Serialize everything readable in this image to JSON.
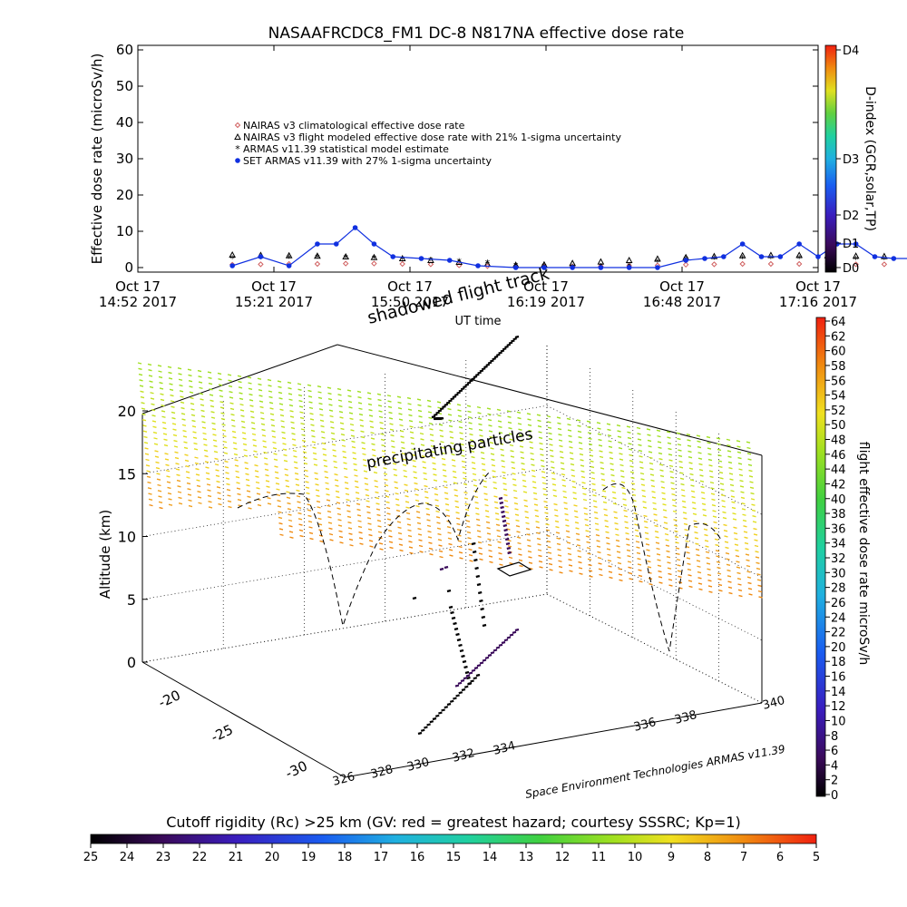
{
  "chart_data": [
    {
      "type": "line",
      "title": "NASAAFRCDC8_FM1 DC-8   N817NA effective dose rate",
      "ylabel": "Effective dose rate (microSv/h)",
      "xlabel": "",
      "ylim": [
        0,
        60
      ],
      "y_ticks": [
        "0",
        "10",
        "20",
        "30",
        "40",
        "50",
        "60"
      ],
      "x_ticks": [
        {
          "line1": "Oct 17",
          "line2": "14:52 2017"
        },
        {
          "line1": "Oct 17",
          "line2": "15:21 2017"
        },
        {
          "line1": "Oct 17",
          "line2": "15:50 2017"
        },
        {
          "line1": "Oct 17",
          "line2": "16:19 2017"
        },
        {
          "line1": "Oct 17",
          "line2": "16:48 2017"
        },
        {
          "line1": "Oct 17",
          "line2": "17:16 2017"
        }
      ],
      "x_axis_caption": "UT time",
      "legend_placement": "upper-left",
      "legend": [
        "NAIRAS v3 climatological effective dose rate",
        "NAIRAS v3 flight modeled effective dose rate with 21% 1-sigma uncertainty",
        "ARMAS v11.39 statistical model estimate",
        "SET ARMAS v11.39 with 27% 1-sigma uncertainty"
      ],
      "colors": [
        "#d06060",
        "#000000",
        "#55dd55",
        "#1030e0"
      ],
      "series": [
        {
          "name": "NAIRAS v3 climatological effective dose rate",
          "x_minutes": [
            20,
            26,
            32,
            38,
            44,
            50,
            56,
            62,
            68,
            74,
            80,
            86,
            92,
            98,
            104,
            110,
            116,
            122,
            128,
            134,
            140,
            146,
            152,
            158,
            164,
            170
          ],
          "values": [
            0.8,
            0.9,
            1.0,
            1.0,
            1.1,
            1.1,
            1.0,
            0.9,
            0.6,
            0.4,
            0.3,
            0.3,
            0.3,
            0.4,
            0.5,
            0.6,
            0.8,
            0.9,
            1.0,
            1.0,
            1.0,
            1.0,
            0.9,
            0.9,
            0.8,
            0.8
          ]
        },
        {
          "name": "NAIRAS v3 flight modeled effective dose rate with 21% 1-sigma uncertainty",
          "x_minutes": [
            20,
            26,
            32,
            38,
            44,
            50,
            56,
            62,
            68,
            74,
            80,
            86,
            92,
            98,
            104,
            110,
            116,
            122,
            128,
            134,
            140,
            146,
            152,
            158,
            164,
            170
          ],
          "values": [
            3.5,
            3.4,
            3.3,
            3.2,
            3.0,
            2.8,
            2.5,
            2.0,
            1.5,
            1.0,
            0.7,
            0.8,
            1.2,
            1.6,
            2.0,
            2.4,
            2.8,
            3.1,
            3.3,
            3.4,
            3.4,
            3.3,
            3.2,
            3.1,
            3.0,
            3.0
          ]
        },
        {
          "name": "ARMAS v11.39 statistical model estimate",
          "x_minutes": [
            20,
            26,
            32,
            38,
            44,
            50,
            56,
            62,
            68,
            74,
            80,
            86,
            92,
            98,
            104,
            110,
            116,
            122,
            128,
            134,
            140,
            146,
            152,
            158,
            164,
            170
          ],
          "values": [
            2.5,
            2.5,
            2.6,
            2.7,
            2.6,
            2.5,
            2.3,
            2.0,
            1.6,
            1.3,
            0.5,
            0.2,
            0.1,
            0.2,
            0.4,
            1.5,
            2.2,
            2.4,
            2.5,
            2.5,
            2.5,
            2.4,
            2.3,
            2.2,
            2.0,
            1.5
          ]
        },
        {
          "name": "SET ARMAS v11.39 with 27% 1-sigma uncertainty",
          "x_minutes": [
            20,
            26,
            32,
            38,
            42,
            46,
            50,
            54,
            60,
            66,
            72,
            80,
            86,
            92,
            98,
            104,
            110,
            116,
            120,
            124,
            128,
            132,
            136,
            140,
            144,
            148,
            152,
            156,
            160,
            166,
            170
          ],
          "values": [
            0.5,
            3.0,
            0.5,
            6.5,
            6.5,
            11.0,
            6.5,
            3.0,
            2.5,
            2.0,
            0.5,
            0.0,
            0.0,
            0.0,
            0.0,
            0.0,
            0.0,
            2.0,
            2.5,
            3.0,
            6.5,
            3.0,
            3.0,
            6.5,
            3.0,
            6.5,
            6.5,
            3.0,
            2.5,
            2.5,
            2.5
          ]
        }
      ]
    },
    {
      "type": "scatter",
      "zlabel": "Altitude (km)",
      "z_ticks": [
        "0",
        "5",
        "10",
        "15",
        "20"
      ],
      "zlim": [
        0,
        20
      ],
      "lat_ticks": [
        "-20",
        "-25",
        "-30"
      ],
      "lon_ticks": [
        "328",
        "330",
        "332",
        "334",
        "336",
        "338",
        "340"
      ],
      "lon_ticks_left": [
        "326",
        "328"
      ],
      "annotations": [
        "shadowed flight track",
        "precipitating particles"
      ],
      "credit": "Space Environment Technologies ARMAS v11.39",
      "colorbar_right": {
        "label": "flight effective dose rate microSv/h",
        "ticks": [
          "0",
          "2",
          "4",
          "6",
          "8",
          "10",
          "12",
          "14",
          "16",
          "18",
          "20",
          "22",
          "24",
          "26",
          "28",
          "30",
          "32",
          "34",
          "36",
          "38",
          "40",
          "42",
          "44",
          "46",
          "48",
          "50",
          "52",
          "54",
          "56",
          "58",
          "60",
          "62",
          "64"
        ]
      },
      "colorbar_bottom": {
        "label": "Cutoff rigidity (Rc) >25 km (GV: red = greatest hazard; courtesy SSSRC; Kp=1)",
        "ticks": [
          "25",
          "24",
          "23",
          "22",
          "21",
          "20",
          "19",
          "18",
          "17",
          "16",
          "15",
          "14",
          "13",
          "12",
          "11",
          "10",
          "9",
          "8",
          "7",
          "6",
          "5"
        ]
      },
      "colorbar_dindex": {
        "label": "D-index (GCR,solar,TP)",
        "ticks": [
          "D4",
          "D3",
          "D2",
          "D1",
          "D0"
        ]
      }
    }
  ]
}
